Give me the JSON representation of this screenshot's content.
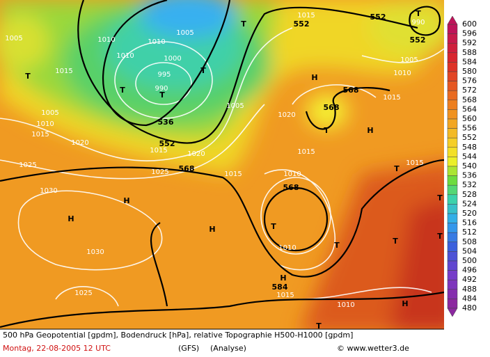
{
  "legend": {
    "levels": [
      600,
      596,
      592,
      588,
      584,
      580,
      576,
      572,
      568,
      564,
      560,
      556,
      552,
      548,
      544,
      540,
      536,
      532,
      528,
      524,
      520,
      516,
      512,
      508,
      504,
      500,
      496,
      492,
      488,
      484,
      480
    ]
  },
  "map_labels": [
    "1005",
    "1010",
    "1010",
    "1005",
    "1010",
    "1000",
    "995",
    "990",
    "T",
    "T",
    "T",
    "T",
    "T",
    "1015",
    "1005",
    "1010",
    "1015",
    "1020",
    "536",
    "552",
    "1015",
    "1020",
    "1025",
    "568",
    "1015",
    "1025",
    "1030",
    "H",
    "H",
    "1030",
    "1025",
    "H",
    "1005",
    "1020",
    "1015",
    "1010",
    "568",
    "T",
    "1010",
    "T",
    "H",
    "584",
    "1015",
    "1010",
    "T",
    "H",
    "T",
    "T",
    "1015",
    "H",
    "T",
    "568",
    "568",
    "H",
    "1015",
    "1010",
    "1005",
    "552",
    "552",
    "552",
    "1015",
    "T",
    "990",
    "T",
    "T"
  ],
  "footer": {
    "description": "500 hPa Geopotential [gpdm], Bodendruck [hPa], relative Topographie H500-H1000 [gpdm]",
    "date": "Montag, 22-08-2005  12 UTC",
    "model": "(GFS)",
    "run": "(Analyse)",
    "credit": "© www.wetter3.de"
  }
}
